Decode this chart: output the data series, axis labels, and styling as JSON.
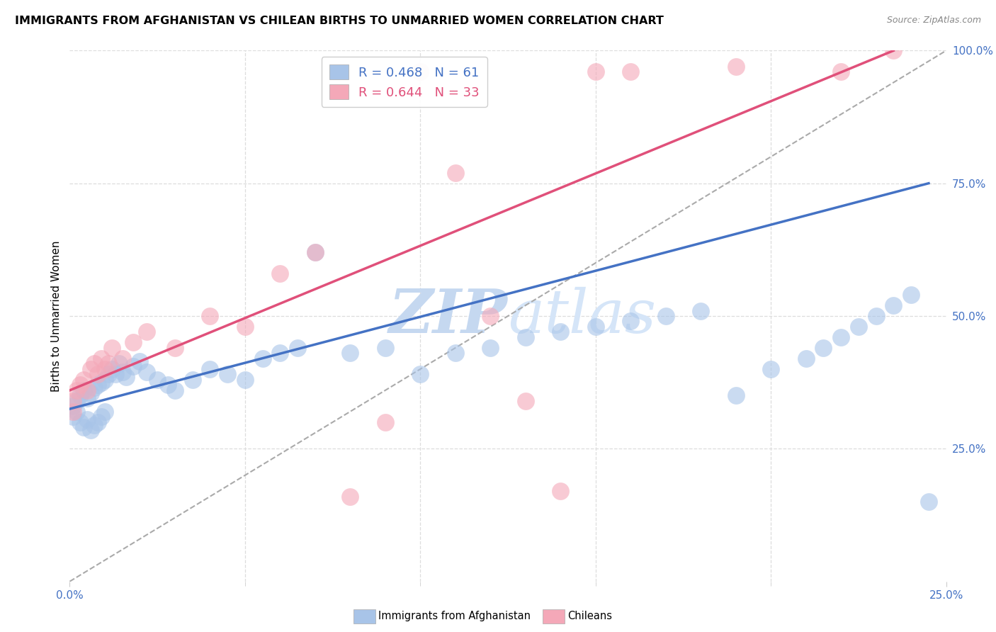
{
  "title": "IMMIGRANTS FROM AFGHANISTAN VS CHILEAN BIRTHS TO UNMARRIED WOMEN CORRELATION CHART",
  "source": "Source: ZipAtlas.com",
  "ylabel": "Births to Unmarried Women",
  "legend_blue_label": "Immigrants from Afghanistan",
  "legend_pink_label": "Chileans",
  "r_blue": 0.468,
  "n_blue": 61,
  "r_pink": 0.644,
  "n_pink": 33,
  "xmin": 0.0,
  "xmax": 0.25,
  "ymin": 0.0,
  "ymax": 1.0,
  "ytick_right_labels": [
    "25.0%",
    "50.0%",
    "75.0%",
    "100.0%"
  ],
  "ytick_right_values": [
    0.25,
    0.5,
    0.75,
    1.0
  ],
  "xtick_labels": [
    "0.0%",
    "25.0%"
  ],
  "xtick_values": [
    0.0,
    0.25
  ],
  "blue_color": "#a8c4e8",
  "pink_color": "#f4a8b8",
  "blue_line_color": "#4472c4",
  "pink_line_color": "#e0507a",
  "watermark_zip_color": "#c8dcf0",
  "watermark_atlas_color": "#d8e8f8",
  "background_color": "#ffffff",
  "grid_color": "#dddddd",
  "blue_scatter_x": [
    0.001,
    0.001,
    0.002,
    0.002,
    0.003,
    0.003,
    0.004,
    0.004,
    0.005,
    0.005,
    0.006,
    0.006,
    0.007,
    0.007,
    0.008,
    0.008,
    0.009,
    0.009,
    0.01,
    0.01,
    0.011,
    0.012,
    0.013,
    0.014,
    0.015,
    0.016,
    0.018,
    0.02,
    0.022,
    0.025,
    0.028,
    0.03,
    0.035,
    0.04,
    0.045,
    0.05,
    0.055,
    0.06,
    0.065,
    0.07,
    0.08,
    0.09,
    0.1,
    0.11,
    0.12,
    0.13,
    0.14,
    0.15,
    0.16,
    0.17,
    0.18,
    0.19,
    0.2,
    0.21,
    0.215,
    0.22,
    0.225,
    0.23,
    0.235,
    0.24,
    0.245
  ],
  "blue_scatter_y": [
    0.33,
    0.31,
    0.34,
    0.32,
    0.35,
    0.3,
    0.36,
    0.29,
    0.345,
    0.305,
    0.355,
    0.285,
    0.365,
    0.295,
    0.37,
    0.3,
    0.375,
    0.31,
    0.38,
    0.32,
    0.39,
    0.4,
    0.39,
    0.41,
    0.395,
    0.385,
    0.405,
    0.415,
    0.395,
    0.38,
    0.37,
    0.36,
    0.38,
    0.4,
    0.39,
    0.38,
    0.42,
    0.43,
    0.44,
    0.62,
    0.43,
    0.44,
    0.39,
    0.43,
    0.44,
    0.46,
    0.47,
    0.48,
    0.49,
    0.5,
    0.51,
    0.35,
    0.4,
    0.42,
    0.44,
    0.46,
    0.48,
    0.5,
    0.52,
    0.54,
    0.15
  ],
  "pink_scatter_x": [
    0.001,
    0.001,
    0.002,
    0.003,
    0.004,
    0.005,
    0.006,
    0.007,
    0.008,
    0.009,
    0.01,
    0.011,
    0.012,
    0.015,
    0.018,
    0.022,
    0.03,
    0.04,
    0.05,
    0.06,
    0.07,
    0.08,
    0.09,
    0.1,
    0.11,
    0.12,
    0.13,
    0.14,
    0.15,
    0.16,
    0.19,
    0.22,
    0.235
  ],
  "pink_scatter_y": [
    0.34,
    0.32,
    0.36,
    0.37,
    0.38,
    0.36,
    0.4,
    0.41,
    0.39,
    0.42,
    0.4,
    0.41,
    0.44,
    0.42,
    0.45,
    0.47,
    0.44,
    0.5,
    0.48,
    0.58,
    0.62,
    0.16,
    0.3,
    0.96,
    0.77,
    0.5,
    0.34,
    0.17,
    0.96,
    0.96,
    0.97,
    0.96,
    1.0
  ],
  "blue_line_x": [
    0.0,
    0.245
  ],
  "blue_line_y": [
    0.325,
    0.75
  ],
  "pink_line_x": [
    0.0,
    0.235
  ],
  "pink_line_y": [
    0.36,
    1.0
  ],
  "ref_line_x": [
    0.0,
    0.25
  ],
  "ref_line_y": [
    0.0,
    1.0
  ]
}
